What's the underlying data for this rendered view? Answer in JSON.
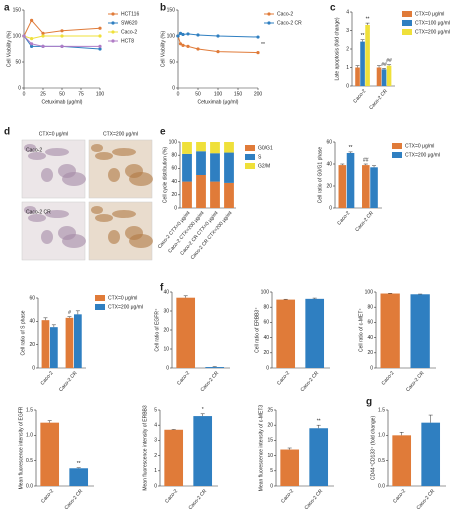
{
  "chart_data": [
    {
      "panel": "a",
      "type": "line",
      "xlabel": "Cetuximab (μg/ml)",
      "ylabel": "Cell Viability (%)",
      "x": [
        0,
        10,
        25,
        50,
        100
      ],
      "xlim": [
        0,
        100
      ],
      "xticks": [
        0,
        25,
        50,
        75,
        100
      ],
      "ylim": [
        0,
        150
      ],
      "yticks": [
        0,
        50,
        100,
        150
      ],
      "series": [
        {
          "name": "HCT116",
          "color": "#e07b39",
          "values": [
            100,
            130,
            105,
            110,
            115
          ]
        },
        {
          "name": "SW620",
          "color": "#2f7fc1",
          "values": [
            100,
            80,
            80,
            80,
            75
          ]
        },
        {
          "name": "Caco-2",
          "color": "#efe03a",
          "values": [
            100,
            95,
            100,
            100,
            100
          ]
        },
        {
          "name": "HCT8",
          "color": "#b07cc6",
          "values": [
            100,
            85,
            80,
            80,
            80
          ]
        }
      ]
    },
    {
      "panel": "b",
      "type": "line",
      "xlabel": "Cetuximab (μg/ml)",
      "ylabel": "Cell Viability (%)",
      "x": [
        0,
        6.25,
        12.5,
        25,
        50,
        100,
        200
      ],
      "xlim": [
        0,
        200
      ],
      "xticks": [
        0,
        50,
        100,
        150,
        200
      ],
      "ylim": [
        0,
        150
      ],
      "yticks": [
        0,
        50,
        100,
        150
      ],
      "series": [
        {
          "name": "Caco-2",
          "color": "#e07b39",
          "values": [
            100,
            85,
            82,
            80,
            75,
            70,
            68
          ]
        },
        {
          "name": "Caco-2 CR",
          "color": "#2f7fc1",
          "values": [
            100,
            105,
            103,
            104,
            102,
            100,
            98
          ]
        }
      ],
      "annotations": [
        {
          "text": "**",
          "series": 1
        }
      ]
    },
    {
      "panel": "c",
      "type": "bar",
      "ylabel": "Late apoptosis (fold change)",
      "categories": [
        "Caco-2",
        "Caco-2 CR"
      ],
      "ylim": [
        0,
        4
      ],
      "yticks": [
        0,
        1,
        2,
        3,
        4
      ],
      "series": [
        {
          "name": "CTX=0 μg/ml",
          "color": "#e07b39",
          "values": [
            1.0,
            1.0
          ],
          "errors": [
            0.1,
            0.1
          ]
        },
        {
          "name": "CTX=100 μg/ml",
          "color": "#2f7fc1",
          "values": [
            2.4,
            0.9
          ],
          "errors": [
            0.1,
            0.05
          ]
        },
        {
          "name": "CTX=200 μg/ml",
          "color": "#efe03a",
          "values": [
            3.3,
            1.1
          ],
          "errors": [
            0.1,
            0.05
          ]
        }
      ],
      "annotations": [
        {
          "text": "**",
          "category": 0,
          "series": 1
        },
        {
          "text": "**",
          "category": 0,
          "series": 2
        },
        {
          "text": "##",
          "category": 1,
          "series": 1
        },
        {
          "text": "##",
          "category": 1,
          "series": 2
        }
      ]
    },
    {
      "panel": "d",
      "type": "image",
      "col_labels": [
        "CTX=0 μg/ml",
        "CTX=200 μg/ml"
      ],
      "row_labels": [
        "Caco-2",
        "Caco-2 CR"
      ]
    },
    {
      "panel": "e",
      "type": "stacked",
      "ylabel": "Cell cycle distribution (%)",
      "categories": [
        "Caco-2 CTX=0 μg/ml",
        "Caco-2 CTX=200 μg/ml",
        "Caco-2 CR CTX=0 μg/ml",
        "Caco-2 CR CTX=200 μg/ml"
      ],
      "ylim": [
        0,
        100
      ],
      "yticks": [
        0,
        20,
        40,
        60,
        80,
        100
      ],
      "series": [
        {
          "name": "G0/G1",
          "color": "#e07b39",
          "values": [
            40,
            50,
            40,
            38
          ]
        },
        {
          "name": "S",
          "color": "#2f7fc1",
          "values": [
            42,
            36,
            43,
            46
          ]
        },
        {
          "name": "G2/M",
          "color": "#efe03a",
          "values": [
            18,
            14,
            17,
            16
          ]
        }
      ]
    },
    {
      "type": "bar",
      "ylabel": "Cell ratio of G0/G1 phase",
      "categories": [
        "Caco-2",
        "Caco-2 CR"
      ],
      "ylim": [
        0,
        60
      ],
      "yticks": [
        0,
        20,
        40,
        60
      ],
      "series": [
        {
          "name": "CTX=0 μg/ml",
          "color": "#e07b39",
          "values": [
            39,
            39
          ],
          "errors": [
            1,
            1
          ]
        },
        {
          "name": "CTX=200 μg/ml",
          "color": "#2f7fc1",
          "values": [
            50,
            37
          ],
          "errors": [
            1,
            1.5
          ]
        }
      ],
      "annotations": [
        {
          "text": "**",
          "category": 0,
          "series": 1
        },
        {
          "text": "##",
          "category": 1,
          "series": 0
        }
      ]
    },
    {
      "type": "bar",
      "ylabel": "Cell ratio of S phase",
      "categories": [
        "Caco-2",
        "Caco-2 CR"
      ],
      "ylim": [
        0,
        60
      ],
      "yticks": [
        0,
        20,
        40,
        60
      ],
      "series": [
        {
          "name": "CTX=0 μg/ml",
          "color": "#e07b39",
          "values": [
            41,
            43
          ],
          "errors": [
            2,
            1
          ]
        },
        {
          "name": "CTX=200 μg/ml",
          "color": "#2f7fc1",
          "values": [
            35,
            46
          ],
          "errors": [
            2,
            3
          ]
        }
      ],
      "annotations": [
        {
          "text": "#",
          "category": 1,
          "series": 0
        }
      ]
    },
    {
      "panel": "f",
      "type": "bar",
      "ylabel": "Cell ratio of EGFR⁺",
      "categories": [
        "Caco-2",
        "Caco-2 CR"
      ],
      "ylim": [
        0,
        40
      ],
      "yticks": [
        0,
        10,
        20,
        30,
        40
      ],
      "series": [
        {
          "values": [
            37,
            0.5
          ],
          "errors": [
            1,
            0.2
          ],
          "colors": [
            "#e07b39",
            "#2f7fc1"
          ]
        }
      ]
    },
    {
      "type": "bar",
      "ylabel": "Cell ratio of ERBB3⁺",
      "categories": [
        "Caco-2",
        "Caco-2 CR"
      ],
      "ylim": [
        0,
        100
      ],
      "yticks": [
        0,
        20,
        40,
        60,
        80,
        100
      ],
      "series": [
        {
          "values": [
            90,
            91
          ],
          "errors": [
            0.5,
            1
          ],
          "colors": [
            "#e07b39",
            "#2f7fc1"
          ]
        }
      ]
    },
    {
      "type": "bar",
      "ylabel": "Cell ratio of c-MET⁺",
      "categories": [
        "Caco-2",
        "Caco-2 CR"
      ],
      "ylim": [
        0,
        100
      ],
      "yticks": [
        0,
        20,
        40,
        60,
        80,
        100
      ],
      "series": [
        {
          "values": [
            98,
            97
          ],
          "errors": [
            0.3,
            0.3
          ],
          "colors": [
            "#e07b39",
            "#2f7fc1"
          ]
        }
      ]
    },
    {
      "type": "bar",
      "ylabel": "Mean fluorescence intensity of EGFR",
      "categories": [
        "Caco-2",
        "Caco-2 CR"
      ],
      "ylim": [
        0,
        1.5
      ],
      "yticks": [
        {
          "value": 0,
          "label": "0.0"
        },
        0.5,
        {
          "value": 1,
          "label": "1.0"
        },
        1.5
      ],
      "series": [
        {
          "values": [
            1.25,
            0.35
          ],
          "errors": [
            0.04,
            0.01
          ],
          "colors": [
            "#e07b39",
            "#2f7fc1"
          ]
        }
      ],
      "annotations": [
        {
          "text": "**",
          "category": 1,
          "series": 0
        }
      ]
    },
    {
      "type": "bar",
      "ylabel": "Mean fluorescence intensity of ERBB3",
      "categories": [
        "Caco-2",
        "Caco-2 CR"
      ],
      "ylim": [
        0,
        5
      ],
      "yticks": [
        0,
        1,
        2,
        3,
        4,
        5
      ],
      "series": [
        {
          "values": [
            3.7,
            4.6
          ],
          "errors": [
            0.02,
            0.15
          ],
          "colors": [
            "#e07b39",
            "#2f7fc1"
          ]
        }
      ],
      "annotations": [
        {
          "text": "*",
          "category": 1,
          "series": 0
        }
      ]
    },
    {
      "type": "bar",
      "ylabel": "Mean fluorescence intensity of c-MET3",
      "categories": [
        "Caco-2",
        "Caco-2 CR"
      ],
      "ylim": [
        0,
        25
      ],
      "yticks": [
        0,
        5,
        10,
        15,
        20,
        25
      ],
      "series": [
        {
          "values": [
            12,
            19
          ],
          "errors": [
            0.5,
            1
          ],
          "colors": [
            "#e07b39",
            "#2f7fc1"
          ]
        }
      ],
      "annotations": [
        {
          "text": "**",
          "category": 1,
          "series": 0
        }
      ]
    },
    {
      "panel": "g",
      "type": "bar",
      "ylabel": "CD44⁺CD133⁺ (fold change)",
      "categories": [
        "Caco-2",
        "Caco-2 CR"
      ],
      "ylim": [
        0,
        1.5
      ],
      "yticks": [
        {
          "value": 0,
          "label": "0.0"
        },
        0.5,
        {
          "value": 1,
          "label": "1.0"
        },
        1.5
      ],
      "series": [
        {
          "values": [
            1.0,
            1.25
          ],
          "errors": [
            0.06,
            0.15
          ],
          "colors": [
            "#e07b39",
            "#2f7fc1"
          ]
        }
      ]
    }
  ]
}
